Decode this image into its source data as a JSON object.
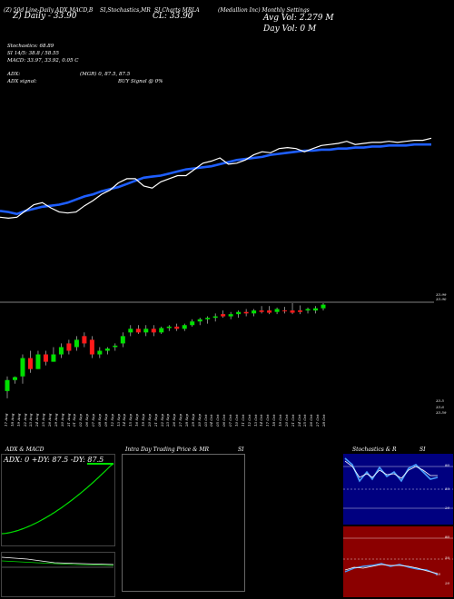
{
  "header": {
    "line1_left": "(Z) 50d Line-Daily ADX,MACD,B",
    "line1_mid": "SI,Stochastics,MR",
    "line1_right": "SI Charts MRLA",
    "line1_far": "(Medallion Inc) Monthly Settings",
    "ema_label": "Z) Daily - 33.90",
    "close_label": "CL: 33.90",
    "avg_vol": "Avg Vol: 2.279 M",
    "day_vol": "Day Vol: 0   M"
  },
  "stats": {
    "stochastics": "Stochastics: 68.89",
    "si": "SI 14/5: 38.8  / 58.55",
    "macd": "MACD: 33.97,  33.92,  0.05  C",
    "adx": "ADX:",
    "adx_vals": "(MGR) 0, 87.5,  87.5",
    "adx_signal": "ADX  signal:",
    "buy_signal": "BUY Signal @ 0%"
  },
  "price_labels": {
    "top1": "33.99",
    "top2": "33.90",
    "bot1": "33.5",
    "bot2": "33.6",
    "bot3": "33.59"
  },
  "date_labels": [
    "17 Aug",
    "18 Aug",
    "19 Aug",
    "22 Aug",
    "23 Aug",
    "24 Aug",
    "25 Aug",
    "26 Aug",
    "29 Aug",
    "30 Aug",
    "31 Aug",
    "01 Sep",
    "02 Sep",
    "06 Sep",
    "07 Sep",
    "08 Sep",
    "09 Sep",
    "12 Sep",
    "13 Sep",
    "14 Sep",
    "15 Sep",
    "16 Sep",
    "19 Sep",
    "20 Sep",
    "21 Sep",
    "22 Sep",
    "23 Sep",
    "26 Sep",
    "27 Sep",
    "28 Sep",
    "29 Sep",
    "30 Sep",
    "03 Oct",
    "04 Oct",
    "05 Oct",
    "06 Oct",
    "07 Oct",
    "10 Oct",
    "11 Oct",
    "12 Oct",
    "13 Oct",
    "14 Oct",
    "17 Oct",
    "18 Oct",
    "19 Oct",
    "20 Oct",
    "21 Oct",
    "24 Oct",
    "25 Oct",
    "26 Oct",
    "27 Oct",
    "28 Oct"
  ],
  "panels": {
    "adx_title": "ADX  & MACD",
    "adx_readout": "ADX: 0  +DY: 87.5 -DY: 87.5",
    "intraday_title": "Intra  Day Trading Price  & MR",
    "intraday_si": "SI",
    "stoch_title": "Stochastics & R",
    "stoch_si": "SI",
    "stoch_levels": [
      "80",
      "50",
      "20"
    ],
    "rsi_levels": [
      "80",
      "50",
      "20",
      "30"
    ]
  },
  "colors": {
    "up": "#00e000",
    "down": "#ff1a1a",
    "ema": "#1e5eff",
    "price": "#ffffff",
    "rsi_bg": "#8b0000",
    "stoch_bg": "#000080"
  },
  "chart_data": {
    "type": "line",
    "title": "",
    "series": [
      {
        "values": [
          34.6,
          34.5,
          34.3,
          34.6,
          34.8,
          35.0,
          35.1,
          35.2,
          35.4,
          35.7,
          36.0,
          36.2,
          36.5,
          36.7,
          36.9,
          37.2,
          37.5,
          37.8,
          37.9,
          38.0,
          38.2,
          38.4,
          38.6,
          38.7,
          38.8,
          38.9,
          39.1,
          39.3,
          39.5,
          39.6,
          39.7,
          39.8,
          40.0,
          40.1,
          40.2,
          40.3,
          40.4,
          40.4,
          40.5,
          40.5,
          40.6,
          40.6,
          40.7,
          40.7,
          40.8,
          40.8,
          40.9,
          40.9,
          40.9,
          41.0,
          41.0,
          41.0
        ]
      },
      {
        "values": [
          34.0,
          33.9,
          34.0,
          34.6,
          35.2,
          35.4,
          34.9,
          34.5,
          34.4,
          34.5,
          35.1,
          35.6,
          36.2,
          36.6,
          37.3,
          37.7,
          37.7,
          37.0,
          36.8,
          37.4,
          37.7,
          38.0,
          38.0,
          38.6,
          39.2,
          39.4,
          39.7,
          39.1,
          39.2,
          39.5,
          40.0,
          40.3,
          40.2,
          40.6,
          40.7,
          40.6,
          40.3,
          40.6,
          40.9,
          41.0,
          41.1,
          41.3,
          41.0,
          41.1,
          41.2,
          41.2,
          41.3,
          41.2,
          41.3,
          41.4,
          41.4,
          41.6
        ]
      }
    ],
    "candles": [
      [
        33.5,
        33.7,
        33.4,
        33.65
      ],
      [
        33.65,
        33.7,
        33.6,
        33.69
      ],
      [
        33.7,
        34.0,
        33.6,
        33.95
      ],
      [
        33.95,
        34.05,
        33.75,
        33.8
      ],
      [
        33.8,
        34.05,
        33.8,
        34.0
      ],
      [
        34.0,
        34.05,
        33.85,
        33.9
      ],
      [
        33.9,
        34.1,
        33.9,
        34.0
      ],
      [
        34.0,
        34.15,
        33.95,
        34.1
      ],
      [
        34.15,
        34.2,
        34.0,
        34.05
      ],
      [
        34.1,
        34.25,
        34.05,
        34.2
      ],
      [
        34.25,
        34.3,
        34.1,
        34.15
      ],
      [
        34.2,
        34.25,
        33.95,
        34.0
      ],
      [
        34.0,
        34.1,
        33.95,
        34.05
      ],
      [
        34.05,
        34.1,
        34.0,
        34.08
      ],
      [
        34.1,
        34.15,
        34.05,
        34.12
      ],
      [
        34.15,
        34.3,
        34.1,
        34.25
      ],
      [
        34.3,
        34.4,
        34.25,
        34.35
      ],
      [
        34.35,
        34.4,
        34.28,
        34.3
      ],
      [
        34.3,
        34.4,
        34.25,
        34.35
      ],
      [
        34.35,
        34.4,
        34.25,
        34.3
      ],
      [
        34.3,
        34.38,
        34.28,
        34.36
      ],
      [
        34.36,
        34.4,
        34.32,
        34.38
      ],
      [
        34.38,
        34.42,
        34.32,
        34.35
      ],
      [
        34.35,
        34.42,
        34.32,
        34.4
      ],
      [
        34.4,
        34.48,
        34.38,
        34.45
      ],
      [
        34.45,
        34.5,
        34.4,
        34.48
      ],
      [
        34.48,
        34.52,
        34.42,
        34.5
      ],
      [
        34.5,
        34.56,
        34.45,
        34.52
      ],
      [
        34.55,
        34.6,
        34.5,
        34.52
      ],
      [
        34.52,
        34.58,
        34.48,
        34.55
      ],
      [
        34.55,
        34.6,
        34.5,
        34.58
      ],
      [
        34.58,
        34.62,
        34.52,
        34.56
      ],
      [
        34.56,
        34.62,
        34.52,
        34.6
      ],
      [
        34.6,
        34.66,
        34.56,
        34.58
      ],
      [
        34.6,
        34.66,
        34.55,
        34.57
      ],
      [
        34.58,
        34.64,
        34.55,
        34.62
      ],
      [
        34.6,
        34.65,
        34.56,
        34.59
      ],
      [
        34.6,
        34.7,
        34.55,
        34.57
      ],
      [
        34.6,
        34.67,
        34.55,
        34.58
      ],
      [
        34.6,
        34.64,
        34.56,
        34.62
      ],
      [
        34.6,
        34.66,
        34.56,
        34.63
      ],
      [
        34.63,
        34.7,
        34.6,
        34.68
      ]
    ],
    "xlabel": "",
    "ylabel": ""
  }
}
